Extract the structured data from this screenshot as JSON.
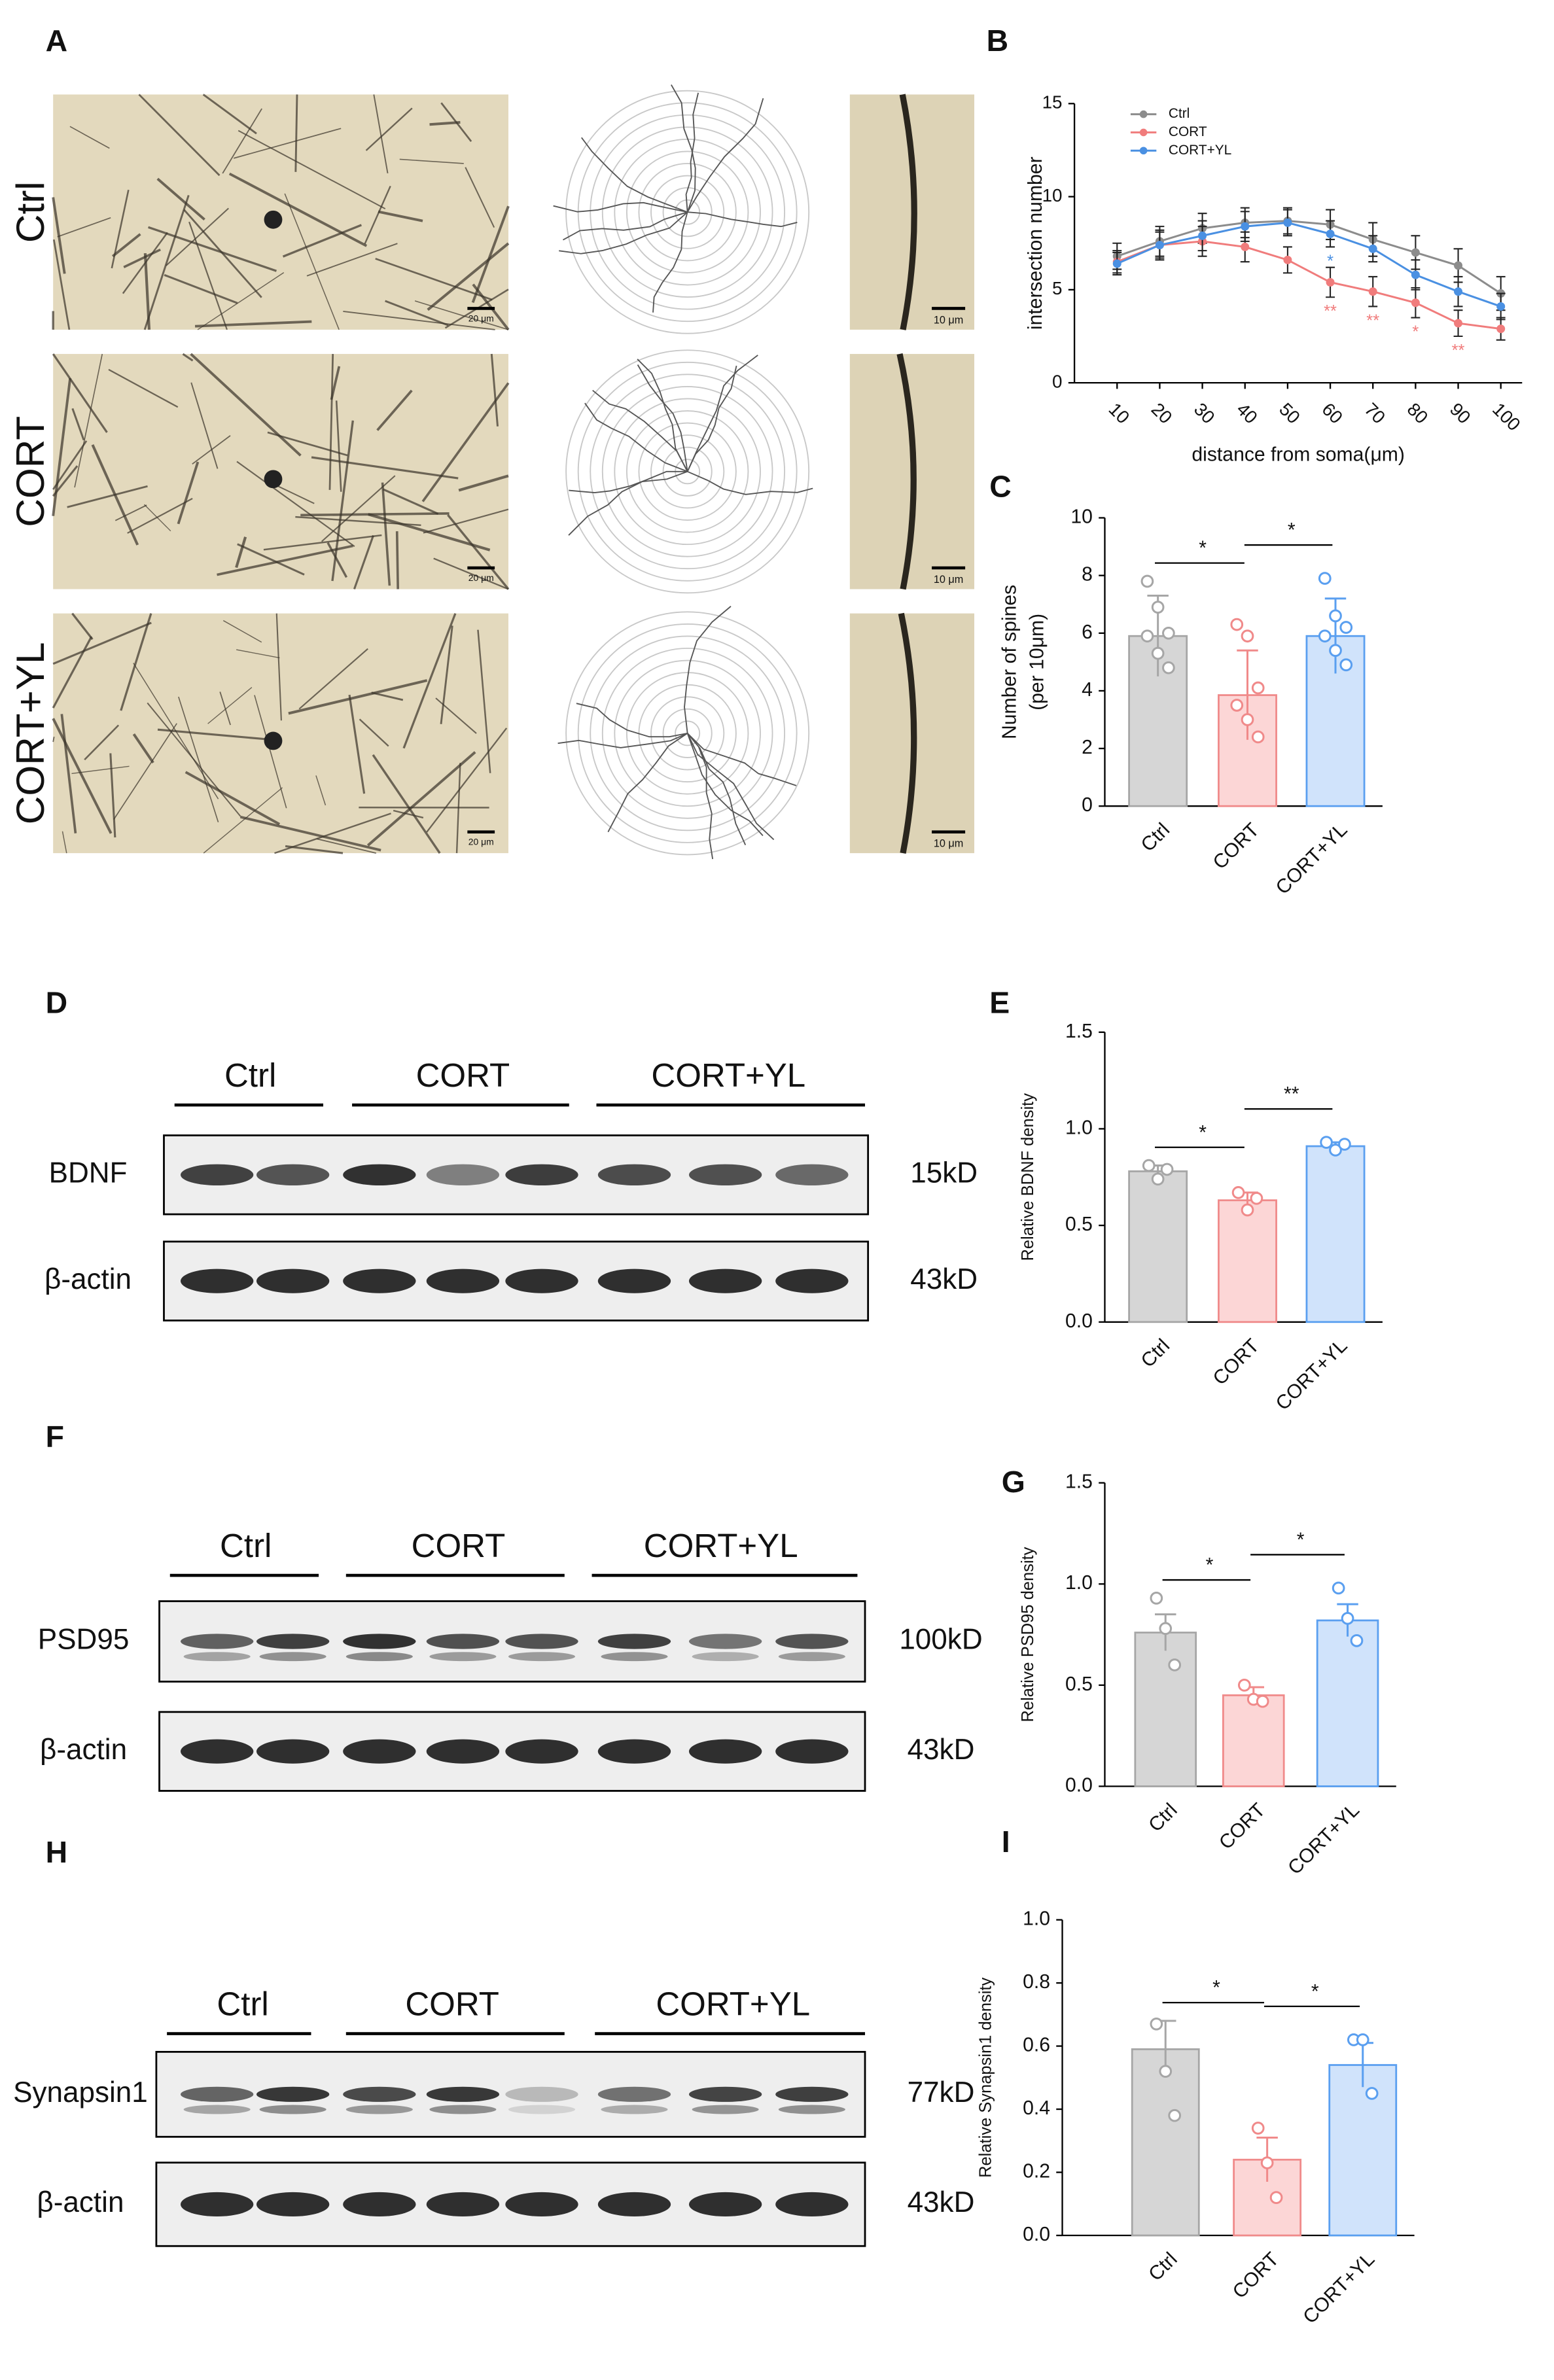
{
  "panel_labels": [
    "A",
    "B",
    "C",
    "D",
    "E",
    "F",
    "G",
    "H",
    "I"
  ],
  "micrographs": {
    "groups": [
      "Ctrl",
      "CORT",
      "CORT+YL"
    ],
    "scale_bars": [
      "20 μm",
      "10 μm"
    ]
  },
  "chart_data": [
    {
      "type": "line",
      "xlabel": "distance from soma(μm)",
      "ylabel": "intersection number",
      "x": [
        10,
        20,
        30,
        40,
        50,
        60,
        70,
        80,
        90,
        100
      ],
      "xlim": [
        0,
        105
      ],
      "xticks": [
        10,
        20,
        30,
        40,
        50,
        60,
        70,
        80,
        90,
        100
      ],
      "ylim": [
        0,
        15
      ],
      "yticks": [
        0,
        5,
        10,
        15
      ],
      "legend": "top-left",
      "series": [
        {
          "name": "Ctrl",
          "color": "#8c8c8c",
          "values": [
            6.8,
            7.6,
            8.3,
            8.6,
            8.7,
            8.5,
            7.7,
            7.0,
            6.3,
            4.8
          ],
          "errors": [
            0.7,
            0.8,
            0.8,
            0.8,
            0.7,
            0.8,
            0.9,
            0.9,
            0.9,
            0.9
          ]
        },
        {
          "name": "CORT",
          "color": "#f07c7c",
          "values": [
            6.5,
            7.4,
            7.6,
            7.3,
            6.6,
            5.4,
            4.9,
            4.3,
            3.2,
            2.9
          ],
          "errors": [
            0.6,
            0.8,
            0.8,
            0.8,
            0.7,
            0.8,
            0.8,
            0.8,
            0.7,
            0.6
          ]
        },
        {
          "name": "CORT+YL",
          "color": "#4a90e2",
          "values": [
            6.4,
            7.4,
            7.9,
            8.4,
            8.6,
            8.0,
            7.2,
            5.8,
            4.9,
            4.1
          ],
          "errors": [
            0.6,
            0.7,
            0.8,
            0.8,
            0.7,
            0.7,
            0.7,
            0.8,
            0.8,
            0.7
          ]
        }
      ],
      "annotations": [
        {
          "series": "CORT+YL",
          "x": 60,
          "label": "*"
        },
        {
          "series": "CORT",
          "x": 60,
          "label": "**"
        },
        {
          "series": "CORT",
          "x": 70,
          "label": "**"
        },
        {
          "series": "CORT",
          "x": 80,
          "label": "*"
        },
        {
          "series": "CORT",
          "x": 90,
          "label": "**"
        }
      ]
    },
    {
      "type": "bar",
      "ylabel": [
        "Number of spines",
        "(per 10μm)"
      ],
      "categories": [
        "Ctrl",
        "CORT",
        "CORT+YL"
      ],
      "values": [
        5.9,
        3.85,
        5.9
      ],
      "errors": [
        1.4,
        1.55,
        1.3
      ],
      "points": [
        [
          7.8,
          6.9,
          6.0,
          5.9,
          5.3,
          4.8
        ],
        [
          6.3,
          5.9,
          4.1,
          3.5,
          3.0,
          2.4
        ],
        [
          7.9,
          6.6,
          6.2,
          5.9,
          5.4,
          4.9
        ]
      ],
      "colors": [
        "#d6d6d6",
        "#fcd6d6",
        "#d0e3fb"
      ],
      "edge_colors": [
        "#a6a6a6",
        "#f08a8a",
        "#5a9ff0"
      ],
      "ylim": [
        0,
        10
      ],
      "yticks": [
        0,
        2,
        4,
        6,
        8,
        10
      ],
      "significance": [
        {
          "groups": [
            "Ctrl",
            "CORT"
          ],
          "label": "*"
        },
        {
          "groups": [
            "CORT",
            "CORT+YL"
          ],
          "label": "*"
        }
      ]
    },
    {
      "type": "bar",
      "ylabel": [
        "Relative BDNF density"
      ],
      "categories": [
        "Ctrl",
        "CORT",
        "CORT+YL"
      ],
      "values": [
        0.78,
        0.63,
        0.91
      ],
      "errors": [
        0.03,
        0.04,
        0.02
      ],
      "points": [
        [
          0.81,
          0.74,
          0.79
        ],
        [
          0.67,
          0.58,
          0.64
        ],
        [
          0.93,
          0.89,
          0.92
        ]
      ],
      "colors": [
        "#d6d6d6",
        "#fcd6d6",
        "#d0e3fb"
      ],
      "edge_colors": [
        "#a6a6a6",
        "#f08a8a",
        "#5a9ff0"
      ],
      "ylim": [
        0,
        1.5
      ],
      "yticks": [
        {
          "value": 0,
          "label": "0.0"
        },
        0.5,
        {
          "value": 1,
          "label": "1.0"
        },
        1.5
      ],
      "significance": [
        {
          "groups": [
            "Ctrl",
            "CORT"
          ],
          "label": "*"
        },
        {
          "groups": [
            "CORT",
            "CORT+YL"
          ],
          "label": "**"
        }
      ]
    },
    {
      "type": "bar",
      "ylabel": [
        "Relative PSD95 density"
      ],
      "categories": [
        "Ctrl",
        "CORT",
        "CORT+YL"
      ],
      "values": [
        0.76,
        0.45,
        0.82
      ],
      "errors": [
        0.09,
        0.04,
        0.08
      ],
      "points": [
        [
          0.93,
          0.78,
          0.6
        ],
        [
          0.5,
          0.43,
          0.42
        ],
        [
          0.98,
          0.83,
          0.72
        ]
      ],
      "colors": [
        "#d6d6d6",
        "#fcd6d6",
        "#d0e3fb"
      ],
      "edge_colors": [
        "#a6a6a6",
        "#f08a8a",
        "#5a9ff0"
      ],
      "ylim": [
        0,
        1.5
      ],
      "yticks": [
        {
          "value": 0,
          "label": "0.0"
        },
        0.5,
        {
          "value": 1,
          "label": "1.0"
        },
        1.5
      ],
      "significance": [
        {
          "groups": [
            "Ctrl",
            "CORT"
          ],
          "label": "*"
        },
        {
          "groups": [
            "CORT",
            "CORT+YL"
          ],
          "label": "*"
        }
      ]
    },
    {
      "type": "bar",
      "ylabel": [
        "Relative Synapsin1 density"
      ],
      "categories": [
        "Ctrl",
        "CORT",
        "CORT+YL"
      ],
      "values": [
        0.59,
        0.24,
        0.54
      ],
      "errors": [
        0.09,
        0.07,
        0.07
      ],
      "points": [
        [
          0.67,
          0.52,
          0.38
        ],
        [
          0.34,
          0.23,
          0.12
        ],
        [
          0.62,
          0.62,
          0.45
        ]
      ],
      "colors": [
        "#d6d6d6",
        "#fcd6d6",
        "#d0e3fb"
      ],
      "edge_colors": [
        "#a6a6a6",
        "#f08a8a",
        "#5a9ff0"
      ],
      "ylim": [
        0,
        1
      ],
      "yticks": [
        {
          "value": 0,
          "label": "0.0"
        },
        0.2,
        0.4,
        0.6,
        0.8,
        {
          "value": 1,
          "label": "1.0"
        }
      ],
      "significance": [
        {
          "groups": [
            "Ctrl",
            "CORT"
          ],
          "label": "*"
        },
        {
          "groups": [
            "CORT",
            "CORT+YL"
          ],
          "label": "*"
        }
      ]
    }
  ],
  "blots": [
    {
      "groups": [
        "Ctrl",
        "CORT",
        "CORT+YL"
      ],
      "rows": [
        {
          "protein": "BDNF",
          "size": "15kD"
        },
        {
          "protein": "β-actin",
          "size": "43kD"
        }
      ]
    },
    {
      "groups": [
        "Ctrl",
        "CORT",
        "CORT+YL"
      ],
      "rows": [
        {
          "protein": "PSD95",
          "size": "100kD"
        },
        {
          "protein": "β-actin",
          "size": "43kD"
        }
      ]
    },
    {
      "groups": [
        "Ctrl",
        "CORT",
        "CORT+YL"
      ],
      "rows": [
        {
          "protein": "Synapsin1",
          "size": "77kD"
        },
        {
          "protein": "β-actin",
          "size": "43kD"
        }
      ]
    }
  ]
}
